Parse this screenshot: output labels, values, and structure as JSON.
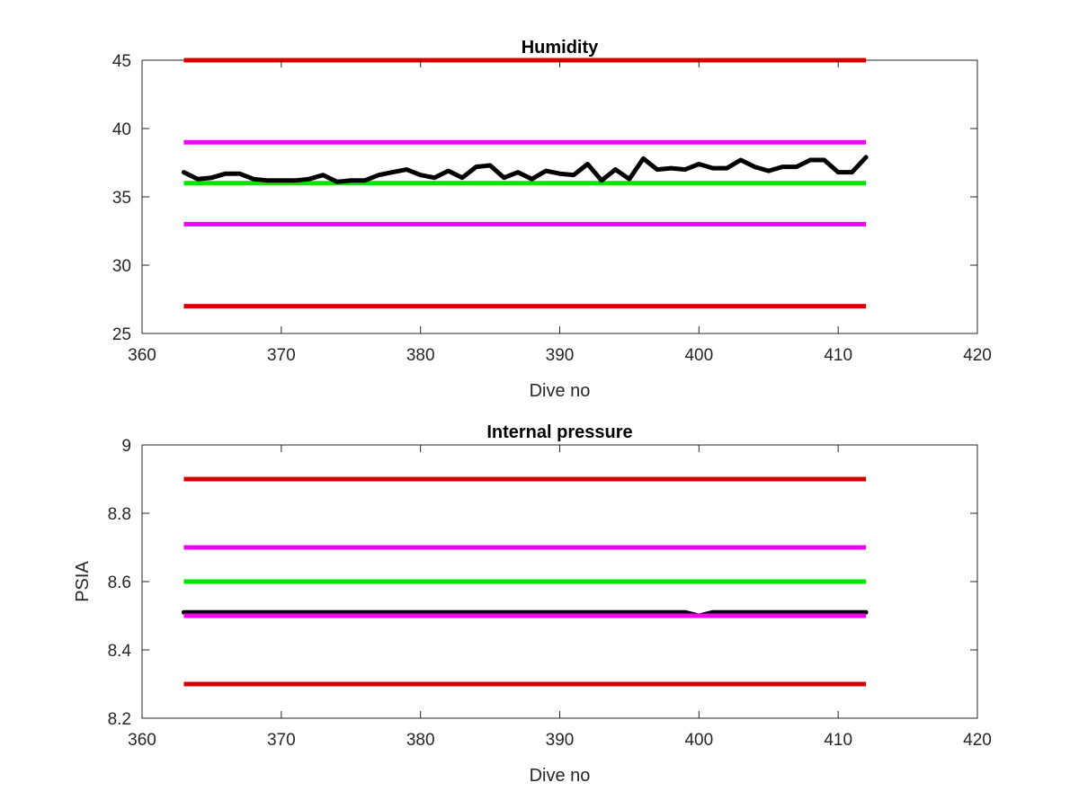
{
  "chart_data": [
    {
      "type": "line",
      "title": "Humidity",
      "xlabel": "Dive no",
      "ylabel": "",
      "xlim": [
        360,
        420
      ],
      "ylim": [
        25,
        45
      ],
      "xticks": [
        "360",
        "370",
        "380",
        "390",
        "400",
        "410",
        "420"
      ],
      "yticks": [
        "25",
        "30",
        "35",
        "40",
        "45"
      ],
      "grid": false,
      "reference_lines": [
        {
          "y": 45,
          "x_start": 363,
          "x_end": 412,
          "color": "#d40000"
        },
        {
          "y": 39,
          "x_start": 363,
          "x_end": 412,
          "color": "#f000f0"
        },
        {
          "y": 36,
          "x_start": 363,
          "x_end": 412,
          "color": "#00e600"
        },
        {
          "y": 33,
          "x_start": 363,
          "x_end": 412,
          "color": "#f000f0"
        },
        {
          "y": 27,
          "x_start": 363,
          "x_end": 412,
          "color": "#d40000"
        }
      ],
      "series": [
        {
          "color": "#000000",
          "x": [
            363,
            364,
            365,
            366,
            367,
            368,
            369,
            370,
            371,
            372,
            373,
            374,
            375,
            376,
            377,
            378,
            379,
            380,
            381,
            382,
            383,
            384,
            385,
            386,
            387,
            388,
            389,
            390,
            391,
            392,
            393,
            394,
            395,
            396,
            397,
            398,
            399,
            400,
            401,
            402,
            403,
            404,
            405,
            406,
            407,
            408,
            409,
            410,
            411,
            412
          ],
          "y": [
            36.8,
            36.3,
            36.4,
            36.7,
            36.7,
            36.3,
            36.2,
            36.2,
            36.2,
            36.3,
            36.6,
            36.1,
            36.2,
            36.2,
            36.6,
            36.8,
            37.0,
            36.6,
            36.4,
            36.9,
            36.4,
            37.2,
            37.3,
            36.4,
            36.8,
            36.3,
            36.9,
            36.7,
            36.6,
            37.4,
            36.2,
            37.0,
            36.3,
            37.8,
            37.0,
            37.1,
            37.0,
            37.4,
            37.1,
            37.1,
            37.7,
            37.2,
            36.9,
            37.2,
            37.2,
            37.7,
            37.7,
            36.8,
            36.8,
            37.9
          ]
        }
      ]
    },
    {
      "type": "line",
      "title": "Internal pressure",
      "xlabel": "Dive no",
      "ylabel": "PSIA",
      "xlim": [
        360,
        420
      ],
      "ylim": [
        8.2,
        9.0
      ],
      "xticks": [
        "360",
        "370",
        "380",
        "390",
        "400",
        "410",
        "420"
      ],
      "yticks": [
        "8.2",
        "8.4",
        "8.6",
        "8.8",
        "9"
      ],
      "grid": false,
      "reference_lines": [
        {
          "y": 8.9,
          "x_start": 363,
          "x_end": 412,
          "color": "#d40000"
        },
        {
          "y": 8.7,
          "x_start": 363,
          "x_end": 412,
          "color": "#f000f0"
        },
        {
          "y": 8.6,
          "x_start": 363,
          "x_end": 412,
          "color": "#00e600"
        },
        {
          "y": 8.3,
          "x_start": 363,
          "x_end": 412,
          "color": "#d40000"
        }
      ],
      "series": [
        {
          "color": "#000000",
          "x": [
            363,
            364,
            365,
            366,
            367,
            368,
            369,
            370,
            371,
            372,
            373,
            374,
            375,
            376,
            377,
            378,
            379,
            380,
            381,
            382,
            383,
            384,
            385,
            386,
            387,
            388,
            389,
            390,
            391,
            392,
            393,
            394,
            395,
            396,
            397,
            398,
            399,
            400,
            401,
            402,
            403,
            404,
            405,
            406,
            407,
            408,
            409,
            410,
            411,
            412
          ],
          "y": [
            8.51,
            8.51,
            8.51,
            8.51,
            8.51,
            8.51,
            8.51,
            8.51,
            8.51,
            8.51,
            8.51,
            8.51,
            8.51,
            8.51,
            8.51,
            8.51,
            8.51,
            8.51,
            8.51,
            8.51,
            8.51,
            8.51,
            8.51,
            8.51,
            8.51,
            8.51,
            8.51,
            8.51,
            8.51,
            8.51,
            8.51,
            8.51,
            8.51,
            8.51,
            8.51,
            8.51,
            8.51,
            8.5,
            8.51,
            8.51,
            8.51,
            8.51,
            8.51,
            8.51,
            8.51,
            8.51,
            8.51,
            8.51,
            8.51,
            8.51
          ]
        }
      ],
      "reference_lines_front": [
        {
          "y": 8.5,
          "x_start": 363,
          "x_end": 412,
          "color": "#f000f0"
        }
      ]
    }
  ]
}
